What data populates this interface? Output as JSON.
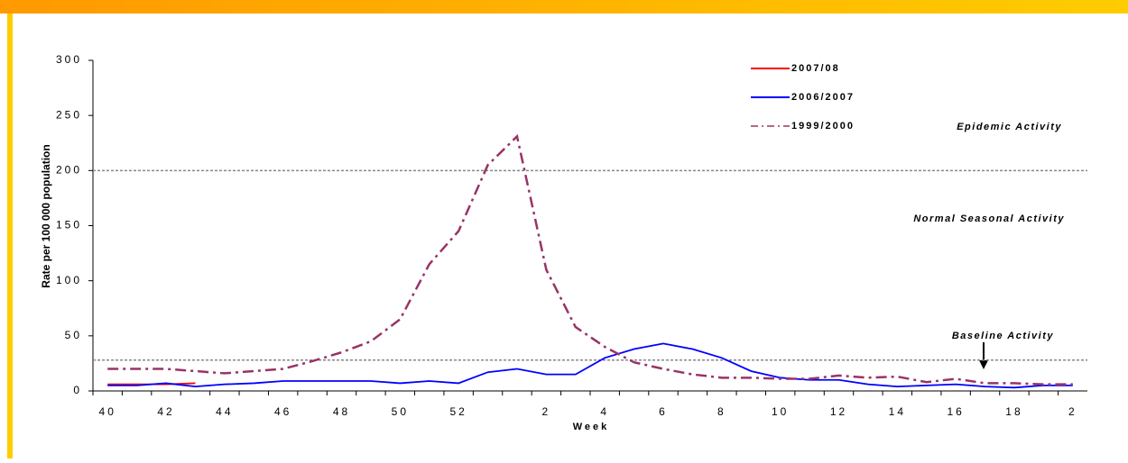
{
  "chart_data": {
    "type": "line",
    "y_label": "Rate per 100 000 population",
    "x_label": "Week",
    "categories": [
      "40",
      null,
      "42",
      null,
      "44",
      null,
      "46",
      null,
      "48",
      null,
      "50",
      null,
      "52",
      null,
      null,
      "2",
      null,
      "4",
      null,
      "6",
      null,
      "8",
      null,
      "10",
      null,
      "12",
      null,
      "14",
      null,
      "16",
      null,
      "18",
      null,
      "2"
    ],
    "series": [
      {
        "name": "2007/08",
        "color": "#ff0000",
        "values": [
          6,
          6,
          6,
          7,
          null,
          null,
          null,
          null,
          null,
          null,
          null,
          null,
          null,
          null,
          null,
          null,
          null,
          null,
          null,
          null,
          null,
          null,
          null,
          null,
          null,
          null,
          null,
          null,
          null,
          null,
          null,
          null,
          null,
          null
        ]
      },
      {
        "name": "2006/2007",
        "color": "#0000ff",
        "values": [
          5,
          5,
          7,
          4,
          6,
          7,
          9,
          9,
          9,
          9,
          7,
          9,
          7,
          17,
          20,
          15,
          15,
          30,
          38,
          43,
          38,
          30,
          18,
          12,
          10,
          10,
          6,
          4,
          5,
          6,
          4,
          3,
          5,
          5
        ]
      },
      {
        "name": "1999/2000",
        "color": "#993366",
        "dashed": true,
        "values": [
          20,
          20,
          20,
          18,
          16,
          18,
          20,
          27,
          35,
          45,
          65,
          115,
          145,
          205,
          231,
          110,
          58,
          40,
          26,
          20,
          15,
          12,
          12,
          11,
          11,
          14,
          12,
          13,
          8,
          11,
          7,
          7,
          6,
          6
        ]
      }
    ],
    "ylim": [
      0,
      300
    ],
    "yticks": [
      0,
      50,
      100,
      150,
      200,
      250,
      300
    ],
    "thresholds": [
      200,
      28
    ],
    "annotations": [
      "Epidemic Activity",
      "Normal Seasonal Activity",
      "Baseline Activity"
    ]
  }
}
